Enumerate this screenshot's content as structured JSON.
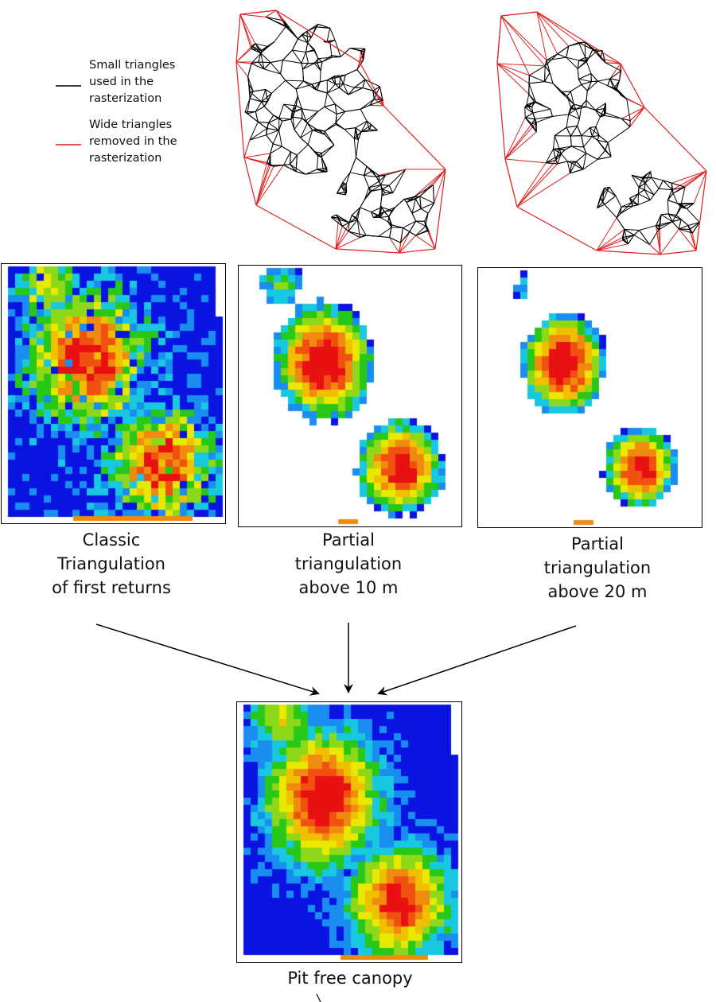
{
  "legend": {
    "small": {
      "label": "Small triangles\nused in the\nrasterization",
      "color": "#000000"
    },
    "wide": {
      "label": "Wide triangles\nremoved in the\nrasterization",
      "color": "#e02020"
    }
  },
  "captions": {
    "classic": "Classic\nTriangulation\nof first returns",
    "partial10": "Partial\ntriangulation\nabove 10 m",
    "partial20": "Partial\ntriangulation\nabove 20 m",
    "result": "Pit free canopy"
  },
  "colors": {
    "palette": [
      "#0a14e0",
      "#1a8ef0",
      "#18c8e0",
      "#28c818",
      "#8ed81a",
      "#e8e800",
      "#f0c000",
      "#f08a10",
      "#f05010",
      "#e81010"
    ],
    "red": "#e02020"
  }
}
